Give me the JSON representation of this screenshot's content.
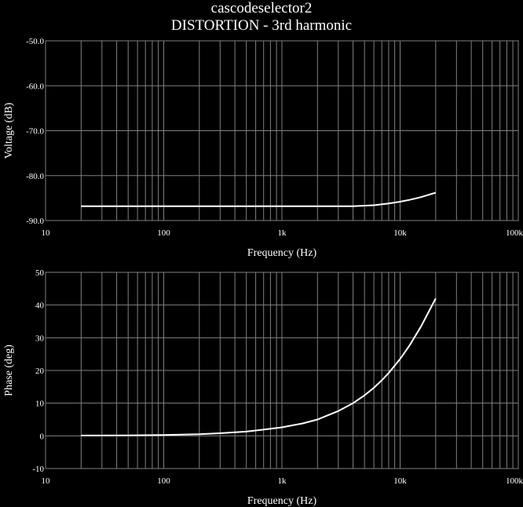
{
  "title": "cascodeselector2",
  "subtitle": "DISTORTION - 3rd harmonic",
  "colors": {
    "background": "#000000",
    "grid": "#808080",
    "trace": "#ffffff",
    "text": "#ffffff"
  },
  "chart_data": [
    {
      "type": "line",
      "title": "",
      "xlabel": "Frequency (Hz)",
      "ylabel": "Voltage (dB)",
      "xscale": "log",
      "xlim": [
        10,
        100000
      ],
      "ylim": [
        -90,
        -50
      ],
      "x_ticks": [
        10,
        100,
        1000,
        10000,
        100000
      ],
      "x_tick_labels": [
        "10",
        "100",
        "1k",
        "10k",
        "100k"
      ],
      "y_ticks": [
        -50,
        -60,
        -70,
        -80,
        -90
      ],
      "y_tick_labels": [
        "-50.0",
        "-60.0",
        "-70.0",
        "-80.0",
        "-90.0"
      ],
      "grid": true,
      "series": [
        {
          "x": [
            20,
            50,
            100,
            200,
            500,
            1000,
            2000,
            4000,
            6000,
            8000,
            10000,
            12000,
            15000,
            20000
          ],
          "values": [
            -86.8,
            -86.8,
            -86.8,
            -86.8,
            -86.8,
            -86.8,
            -86.8,
            -86.8,
            -86.6,
            -86.2,
            -85.8,
            -85.4,
            -84.8,
            -83.8
          ]
        }
      ]
    },
    {
      "type": "line",
      "title": "",
      "xlabel": "Frequency (Hz)",
      "ylabel": "Phase (deg)",
      "xscale": "log",
      "xlim": [
        10,
        100000
      ],
      "ylim": [
        -10,
        50
      ],
      "x_ticks": [
        10,
        100,
        1000,
        10000,
        100000
      ],
      "x_tick_labels": [
        "10",
        "100",
        "1k",
        "10k",
        "100k"
      ],
      "y_ticks": [
        50,
        40,
        30,
        20,
        10,
        0,
        -10
      ],
      "y_tick_labels": [
        "50",
        "40",
        "30",
        "20",
        "10",
        "0",
        "-10"
      ],
      "grid": true,
      "series": [
        {
          "x": [
            20,
            50,
            100,
            200,
            300,
            500,
            700,
            1000,
            1500,
            2000,
            3000,
            4000,
            5000,
            6000,
            7000,
            8000,
            10000,
            12000,
            15000,
            20000
          ],
          "values": [
            0.1,
            0.15,
            0.25,
            0.5,
            0.8,
            1.3,
            1.9,
            2.6,
            3.8,
            5.0,
            7.6,
            10.0,
            12.4,
            14.7,
            17.0,
            19.2,
            23.5,
            27.6,
            33.4,
            42.0
          ]
        }
      ]
    }
  ]
}
